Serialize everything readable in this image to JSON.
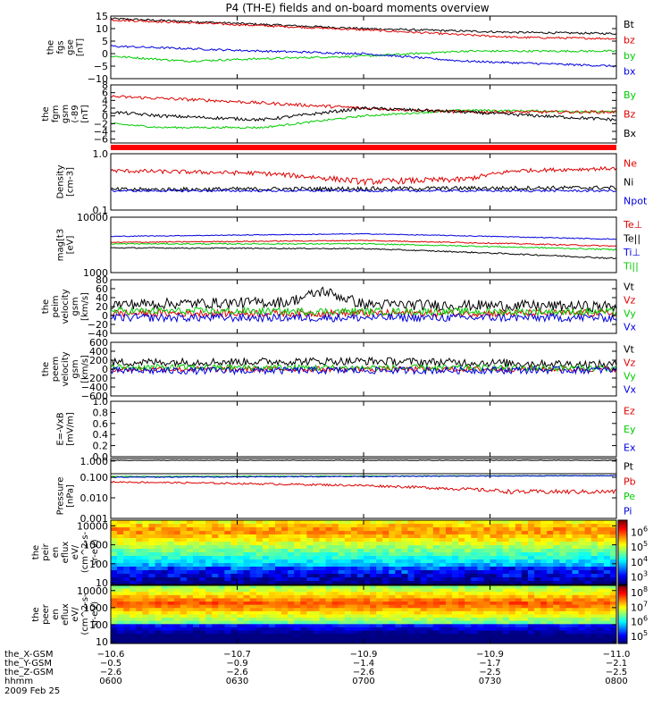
{
  "title": "P4 (TH-E) fields and on-board moments overview",
  "chart_data": [
    {
      "type": "line",
      "id": "fgs",
      "ylabel": [
        "the",
        "fgs",
        "gse",
        "[nT]"
      ],
      "ylim": [
        -10,
        15
      ],
      "yscale": "linear",
      "yticks": [
        -10,
        -5,
        0,
        5,
        10,
        15
      ],
      "ytick_labels": [
        "−10",
        "−5",
        "0",
        "5",
        "10",
        "15"
      ],
      "series": [
        {
          "name": "Bt",
          "color": "#000000",
          "noise": 0.4,
          "anchors": [
            [
              0,
              14
            ],
            [
              0.2,
              12.5
            ],
            [
              0.5,
              10
            ],
            [
              0.8,
              8.5
            ],
            [
              1,
              8
            ]
          ]
        },
        {
          "name": "bz",
          "color": "#dd0000",
          "noise": 0.4,
          "anchors": [
            [
              0,
              13.5
            ],
            [
              0.2,
              12
            ],
            [
              0.5,
              9.5
            ],
            [
              0.8,
              6.5
            ],
            [
              1,
              6
            ]
          ]
        },
        {
          "name": "by",
          "color": "#00cc00",
          "noise": 0.4,
          "anchors": [
            [
              0,
              -1
            ],
            [
              0.15,
              -3
            ],
            [
              0.3,
              -2
            ],
            [
              0.5,
              -1
            ],
            [
              0.7,
              1
            ],
            [
              1,
              1
            ]
          ]
        },
        {
          "name": "bx",
          "color": "#0000dd",
          "noise": 0.4,
          "anchors": [
            [
              0,
              3
            ],
            [
              0.15,
              2
            ],
            [
              0.3,
              1
            ],
            [
              0.5,
              0
            ],
            [
              0.7,
              -3
            ],
            [
              1,
              -5
            ]
          ]
        }
      ]
    },
    {
      "type": "line",
      "id": "fgm",
      "ylabel": [
        "the",
        "fgm",
        "gsm",
        "(-89",
        "[nT]"
      ],
      "ylim": [
        -7,
        8
      ],
      "yscale": "linear",
      "yticks": [
        -6,
        -4,
        -2,
        0,
        2,
        4,
        6,
        8
      ],
      "ytick_labels": [
        "−6",
        "−4",
        "−2",
        "0",
        "2",
        "4",
        "6",
        "8"
      ],
      "series": [
        {
          "name": "By",
          "color": "#00cc00",
          "noise": 0.25,
          "anchors": [
            [
              0,
              -2
            ],
            [
              0.1,
              -3
            ],
            [
              0.3,
              -3
            ],
            [
              0.5,
              0
            ],
            [
              0.7,
              1.5
            ],
            [
              1,
              1
            ]
          ]
        },
        {
          "name": "Bz",
          "color": "#dd0000",
          "noise": 0.4,
          "anchors": [
            [
              0,
              5
            ],
            [
              0.2,
              4
            ],
            [
              0.5,
              2
            ],
            [
              0.7,
              1
            ],
            [
              1,
              1
            ]
          ]
        },
        {
          "name": "Bx",
          "color": "#000000",
          "noise": 0.4,
          "anchors": [
            [
              0,
              1
            ],
            [
              0.1,
              0
            ],
            [
              0.3,
              -1
            ],
            [
              0.5,
              2
            ],
            [
              0.7,
              1
            ],
            [
              0.85,
              0
            ],
            [
              1,
              -1
            ]
          ]
        }
      ]
    },
    {
      "type": "line",
      "id": "density",
      "ylabel": [
        "Density",
        "[cm-3]"
      ],
      "ylim": [
        0.1,
        1.0
      ],
      "yscale": "log",
      "yticks": [
        0.1,
        1.0
      ],
      "ytick_labels": [
        "0.1",
        "1.0"
      ],
      "series": [
        {
          "name": "Ne",
          "color": "#dd0000",
          "noise": 0.04,
          "anchors": [
            [
              0,
              0.5
            ],
            [
              0.3,
              0.45
            ],
            [
              0.5,
              0.32
            ],
            [
              0.7,
              0.35
            ],
            [
              0.8,
              0.5
            ],
            [
              1,
              0.55
            ]
          ]
        },
        {
          "name": "Ni",
          "color": "#000000",
          "noise": 0.02,
          "anchors": [
            [
              0,
              0.23
            ],
            [
              0.5,
              0.24
            ],
            [
              1,
              0.25
            ]
          ]
        },
        {
          "name": "Npot",
          "color": "#0000dd",
          "noise": 0.01,
          "anchors": [
            [
              0,
              0.22
            ],
            [
              1,
              0.22
            ]
          ]
        }
      ]
    },
    {
      "type": "line",
      "id": "temperature",
      "ylabel": [
        "mag[t3",
        "[eV]"
      ],
      "ylim": [
        1000,
        10000
      ],
      "yscale": "log",
      "yticks": [
        1000,
        10000
      ],
      "ytick_labels": [
        "1000",
        "10000"
      ],
      "series": [
        {
          "name": "Te⊥",
          "color": "#dd0000",
          "noise": 80,
          "anchors": [
            [
              0,
              3500
            ],
            [
              0.5,
              3800
            ],
            [
              1,
              3000
            ]
          ]
        },
        {
          "name": "Te||",
          "color": "#000000",
          "noise": 60,
          "anchors": [
            [
              0,
              2800
            ],
            [
              0.5,
              2700
            ],
            [
              1,
              1800
            ]
          ]
        },
        {
          "name": "Ti⊥",
          "color": "#0000dd",
          "noise": 80,
          "anchors": [
            [
              0,
              4500
            ],
            [
              0.5,
              5000
            ],
            [
              1,
              4000
            ]
          ]
        },
        {
          "name": "Ti||",
          "color": "#00cc00",
          "noise": 80,
          "anchors": [
            [
              0,
              3300
            ],
            [
              0.5,
              3300
            ],
            [
              1,
              2600
            ]
          ]
        }
      ]
    },
    {
      "type": "line",
      "id": "peim",
      "ylabel": [
        "the",
        "peim",
        "velocity",
        "gsm",
        "[km/s]"
      ],
      "ylim": [
        -40,
        80
      ],
      "yscale": "linear",
      "yticks": [
        -40,
        -20,
        0,
        20,
        40,
        60,
        80
      ],
      "ytick_labels": [
        "−40",
        "−20",
        "0",
        "20",
        "40",
        "60",
        "80"
      ],
      "series": [
        {
          "name": "Vt",
          "color": "#000000",
          "noise": 12,
          "anchors": [
            [
              0,
              25
            ],
            [
              0.35,
              30
            ],
            [
              0.42,
              55
            ],
            [
              0.5,
              25
            ],
            [
              1,
              20
            ]
          ]
        },
        {
          "name": "Vz",
          "color": "#dd0000",
          "noise": 8,
          "anchors": [
            [
              0,
              5
            ],
            [
              1,
              5
            ]
          ]
        },
        {
          "name": "Vy",
          "color": "#00cc00",
          "noise": 8,
          "anchors": [
            [
              0,
              10
            ],
            [
              1,
              8
            ]
          ]
        },
        {
          "name": "Vx",
          "color": "#0000dd",
          "noise": 9,
          "anchors": [
            [
              0,
              -5
            ],
            [
              1,
              -5
            ]
          ]
        }
      ]
    },
    {
      "type": "line",
      "id": "peem",
      "ylabel": [
        "the",
        "peem",
        "velocity",
        "gsm",
        "[km/s]"
      ],
      "ylim": [
        -600,
        600
      ],
      "yscale": "linear",
      "yticks": [
        -600,
        -400,
        -200,
        0,
        200,
        400,
        600
      ],
      "ytick_labels": [
        "−600",
        "−400",
        "−200",
        "0",
        "200",
        "400",
        "600"
      ],
      "series": [
        {
          "name": "Vt",
          "color": "#000000",
          "noise": 90,
          "anchors": [
            [
              0,
              150
            ],
            [
              0.5,
              180
            ],
            [
              1,
              100
            ]
          ]
        },
        {
          "name": "Vz",
          "color": "#dd0000",
          "noise": 60,
          "anchors": [
            [
              0,
              0
            ],
            [
              1,
              0
            ]
          ]
        },
        {
          "name": "Vy",
          "color": "#00cc00",
          "noise": 70,
          "anchors": [
            [
              0,
              40
            ],
            [
              1,
              20
            ]
          ]
        },
        {
          "name": "Vx",
          "color": "#0000dd",
          "noise": 80,
          "anchors": [
            [
              0,
              -40
            ],
            [
              1,
              -20
            ]
          ]
        }
      ]
    },
    {
      "type": "line",
      "id": "efield",
      "ylabel": [
        "E=-VxB",
        "[mV/m]"
      ],
      "ylim": [
        0,
        1.0
      ],
      "yscale": "linear",
      "yticks": [
        0,
        0.2,
        0.4,
        0.6,
        0.8,
        1.0
      ],
      "ytick_labels": [
        "0.0",
        "0.2",
        "0.4",
        "0.6",
        "0.8",
        "1.0"
      ],
      "series": [
        {
          "name": "Ez",
          "color": "#dd0000",
          "anchors": []
        },
        {
          "name": "Ey",
          "color": "#00cc00",
          "anchors": []
        },
        {
          "name": "Ex",
          "color": "#0000dd",
          "anchors": []
        }
      ]
    },
    {
      "type": "line",
      "id": "pt",
      "ylabel": [],
      "ylim": [
        0,
        1.2
      ],
      "yscale": "linear",
      "yticks": [
        1.0
      ],
      "ytick_labels": [
        "1.000"
      ],
      "series": [
        {
          "name": "Pt",
          "color": "#000000",
          "noise": 0.02,
          "anchors": [
            [
              0,
              1.05
            ],
            [
              1,
              1.05
            ]
          ]
        }
      ]
    },
    {
      "type": "line",
      "id": "pressure",
      "ylabel": [
        "Pressure",
        "[nPa]"
      ],
      "ylim": [
        0.001,
        0.15
      ],
      "yscale": "log",
      "yticks": [
        0.001,
        0.01,
        0.1
      ],
      "ytick_labels": [
        "0.001",
        "0.010",
        "0.100"
      ],
      "series": [
        {
          "name": "Pb",
          "color": "#dd0000",
          "noise": 0.005,
          "anchors": [
            [
              0,
              0.06
            ],
            [
              0.5,
              0.04
            ],
            [
              0.8,
              0.02
            ],
            [
              1,
              0.02
            ]
          ]
        },
        {
          "name": "Pe",
          "color": "#00cc00",
          "noise": 0.005,
          "anchors": [
            [
              0,
              0.11
            ],
            [
              1,
              0.12
            ]
          ]
        },
        {
          "name": "Pi",
          "color": "#0000dd",
          "noise": 0.005,
          "anchors": [
            [
              0,
              0.1
            ],
            [
              1,
              0.12
            ]
          ]
        }
      ]
    },
    {
      "type": "heatmap",
      "id": "peir",
      "ylabel": [
        "the",
        "peir",
        "en",
        "eflux",
        "eV/",
        "(cm^2-s-",
        "sr-eV)"
      ],
      "ylim": [
        8,
        20000
      ],
      "yscale": "log",
      "yticks": [
        10,
        100,
        1000,
        10000
      ],
      "ytick_labels": [
        "10",
        "100",
        "1000",
        "10000"
      ],
      "colorbar": {
        "range_exp": [
          2.5,
          6.8
        ],
        "ticks": [
          {
            "base": "10",
            "exp": "6",
            "v": 6
          },
          {
            "base": "10",
            "exp": "5",
            "v": 5
          },
          {
            "base": "10",
            "exp": "4",
            "v": 4
          },
          {
            "base": "10",
            "exp": "3",
            "v": 3
          }
        ]
      }
    },
    {
      "type": "heatmap",
      "id": "peer",
      "ylabel": [
        "the",
        "peer",
        "en",
        "eflux",
        "eV/",
        "(cm^2-s-",
        "sr-eV)"
      ],
      "ylim": [
        8,
        20000
      ],
      "yscale": "log",
      "yticks": [
        10,
        100,
        1000,
        10000
      ],
      "ytick_labels": [
        "10",
        "100",
        "1000",
        "10000"
      ],
      "colorbar": {
        "range_exp": [
          4.5,
          8.5
        ],
        "ticks": [
          {
            "base": "10",
            "exp": "8",
            "v": 8
          },
          {
            "base": "10",
            "exp": "7",
            "v": 7
          },
          {
            "base": "10",
            "exp": "6",
            "v": 6
          },
          {
            "base": "10",
            "exp": "5",
            "v": 5
          }
        ]
      }
    }
  ],
  "x_axis": {
    "time_labels": [
      "0600",
      "0630",
      "0700",
      "0730",
      "0800"
    ],
    "rows": [
      {
        "label": "the_X-GSM",
        "values": [
          "−10.6",
          "−10.7",
          "−10.9",
          "−10.9",
          "−11.0"
        ]
      },
      {
        "label": "the_Y-GSM",
        "values": [
          "−0.5",
          "−0.9",
          "−1.4",
          "−1.7",
          "−2.1"
        ]
      },
      {
        "label": "the_Z-GSM",
        "values": [
          "−2.6",
          "−2.6",
          "−2.6",
          "−2.5",
          "−2.5"
        ]
      },
      {
        "label": "hhmm",
        "values": [
          "0600",
          "0630",
          "0700",
          "0730",
          "0800"
        ]
      }
    ],
    "date": "2009 Feb 25"
  }
}
